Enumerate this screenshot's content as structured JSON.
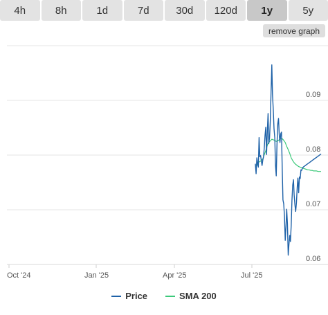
{
  "tabs": [
    {
      "label": "4h",
      "active": false
    },
    {
      "label": "8h",
      "active": false
    },
    {
      "label": "1d",
      "active": false
    },
    {
      "label": "7d",
      "active": false
    },
    {
      "label": "30d",
      "active": false
    },
    {
      "label": "120d",
      "active": false
    },
    {
      "label": "1y",
      "active": true
    },
    {
      "label": "5y",
      "active": false
    }
  ],
  "remove_graph_label": "remove graph",
  "colors": {
    "price": "#1f62a8",
    "sma": "#3cc97a"
  },
  "chart_data": {
    "type": "line",
    "x_ticks": [
      "Oct '24",
      "Jan '25",
      "Apr '25",
      "Jul '25"
    ],
    "y_ticks": [
      "0.09",
      "0.08",
      "0.07",
      "0.06"
    ],
    "ylim": [
      0.06,
      0.1
    ],
    "grid": true,
    "legend": "bottom",
    "series": [
      {
        "name": "Price",
        "x": [
          0,
          1,
          2,
          3,
          4,
          5,
          6,
          7,
          8,
          9,
          10,
          11,
          12,
          13,
          14,
          15,
          16,
          17,
          18,
          19,
          20,
          21,
          22,
          23,
          24,
          25,
          26,
          27,
          28,
          29,
          30,
          31,
          32,
          33,
          34,
          35,
          36,
          37,
          38,
          39,
          40,
          41,
          42,
          43,
          44,
          45,
          46,
          47,
          48,
          49,
          50,
          51,
          52,
          53,
          54,
          55,
          56,
          57,
          58,
          59,
          60,
          61,
          62,
          63,
          64,
          65,
          66,
          67,
          68,
          69,
          70,
          71,
          72,
          73,
          74,
          75,
          76,
          77,
          78,
          79,
          80,
          81,
          82,
          83,
          84,
          85,
          86,
          87,
          88
        ],
        "values": [
          0.0784,
          0.0766,
          0.0795,
          0.0785,
          0.0778,
          0.0832,
          0.0797,
          0.0799,
          0.079,
          0.0781,
          0.0791,
          0.0797,
          0.0815,
          0.0836,
          0.0851,
          0.0801,
          0.0843,
          0.0876,
          0.0821,
          0.0831,
          0.0862,
          0.0915,
          0.0965,
          0.0911,
          0.0883,
          0.0848,
          0.0832,
          0.0782,
          0.0762,
          0.082,
          0.0857,
          0.0867,
          0.0838,
          0.0823,
          0.0839,
          0.0842,
          0.0772,
          0.0718,
          0.0711,
          0.0688,
          0.0644,
          0.0669,
          0.0701,
          0.0674,
          0.0617,
          0.0637,
          0.0653,
          0.0642,
          0.0671,
          0.0717,
          0.0745,
          0.0755,
          0.0727,
          0.0709,
          0.0697,
          0.0713,
          0.0741,
          0.0758,
          0.0731,
          0.076,
          0.0757,
          0.0773,
          0.0772,
          0.0776,
          0.0778,
          0.0779,
          0.078,
          0.0781,
          0.0782,
          0.0783,
          0.0784,
          0.0785,
          0.0786,
          0.0787,
          0.0788,
          0.0789,
          0.079,
          0.0791,
          0.0792,
          0.0793,
          0.0794,
          0.0795,
          0.0796,
          0.0797,
          0.0798,
          0.0799,
          0.08,
          0.0801,
          0.0802
        ]
      },
      {
        "name": "SMA 200",
        "x": [
          0,
          2,
          4,
          6,
          8,
          10,
          12,
          14,
          16,
          18,
          20,
          22,
          24,
          26,
          28,
          30,
          32,
          34,
          36,
          38,
          40,
          42,
          44,
          46,
          48,
          50,
          52,
          54,
          56,
          58,
          60,
          62,
          64,
          66,
          68,
          70,
          72,
          74,
          76,
          78,
          80,
          82,
          84,
          86,
          88
        ],
        "values": [
          0.078,
          0.0781,
          0.0787,
          0.0788,
          0.079,
          0.0793,
          0.0801,
          0.0808,
          0.0818,
          0.0823,
          0.0826,
          0.0829,
          0.0828,
          0.0827,
          0.0825,
          0.0826,
          0.0828,
          0.083,
          0.083,
          0.0827,
          0.0823,
          0.0816,
          0.081,
          0.0803,
          0.0795,
          0.079,
          0.0786,
          0.0783,
          0.0781,
          0.0779,
          0.0778,
          0.0777,
          0.0776,
          0.0775,
          0.0774,
          0.0773,
          0.0773,
          0.0772,
          0.0772,
          0.0771,
          0.0771,
          0.0771,
          0.077,
          0.077,
          0.077
        ]
      }
    ]
  }
}
